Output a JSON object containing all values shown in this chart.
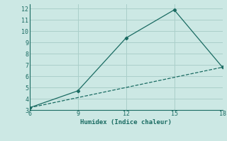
{
  "xlabel": "Humidex (Indice chaleur)",
  "ylabel": "",
  "background_color": "#cce8e4",
  "grid_color": "#aacfca",
  "line_color": "#1a6b62",
  "marker_color": "#1a6b62",
  "xlim": [
    6,
    18
  ],
  "ylim": [
    3,
    12.4
  ],
  "xticks": [
    6,
    9,
    12,
    15,
    18
  ],
  "yticks": [
    3,
    4,
    5,
    6,
    7,
    8,
    9,
    10,
    11,
    12
  ],
  "line1_x": [
    6,
    9,
    12,
    15,
    18
  ],
  "line1_y": [
    3.2,
    4.7,
    9.4,
    11.9,
    6.8
  ],
  "line2_x": [
    6,
    18
  ],
  "line2_y": [
    3.2,
    6.8
  ]
}
